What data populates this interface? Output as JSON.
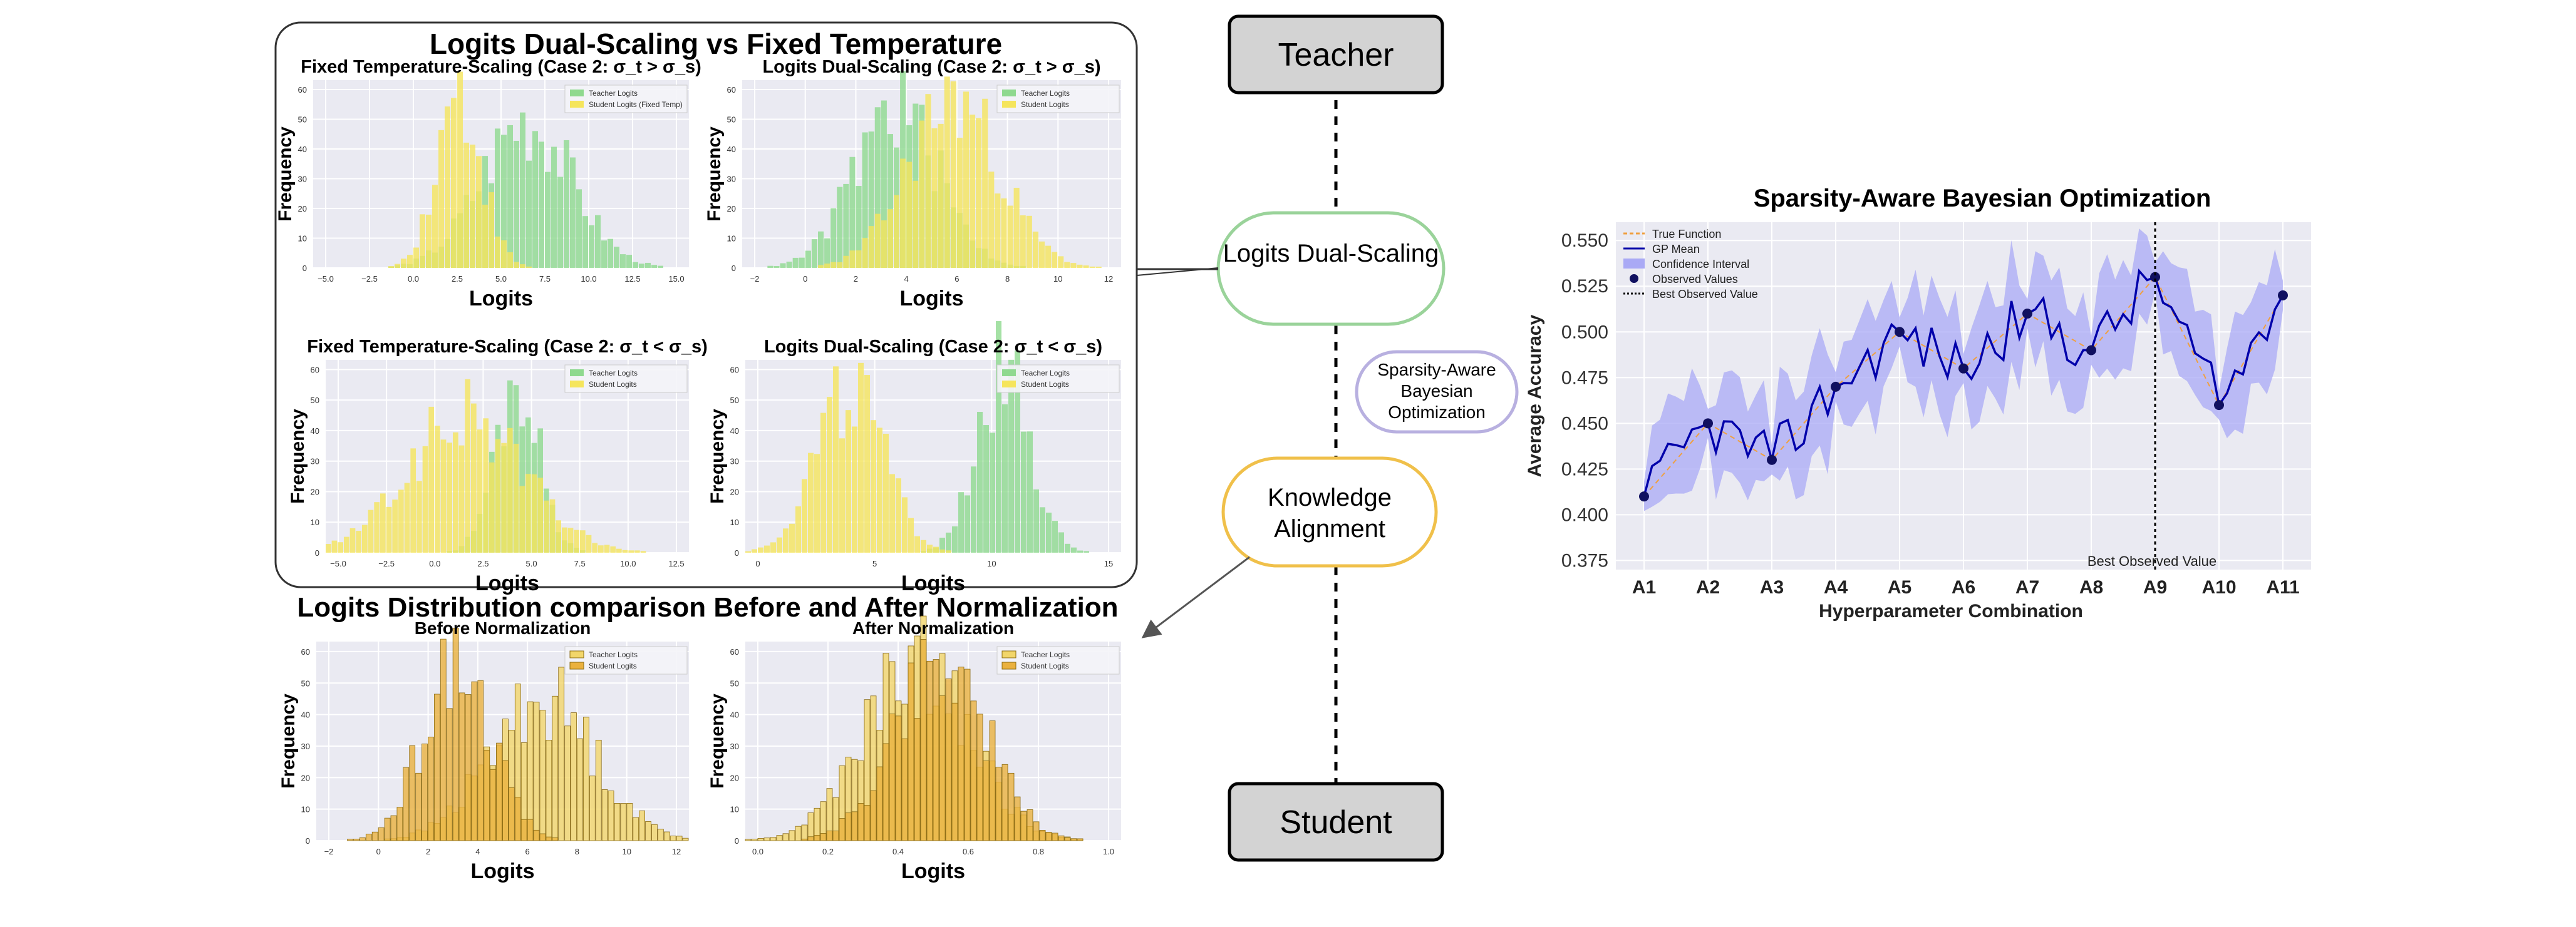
{
  "diagram": {
    "panel_title": "Logits Dual-Scaling vs Fixed Temperature",
    "lower_title": "Logits Distribution comparison Before and After Normalization",
    "nodes": {
      "teacher": "Teacher",
      "dual_scaling": "Logits Dual-Scaling",
      "knowledge_alignment": "Knowledge Alignment",
      "bayes": "Sparsity-Aware Bayesian Optimization",
      "student": "Student"
    },
    "colors": {
      "teacher_green": "#8fd98f",
      "student_yellow": "#f5e55c",
      "orange_teacher": "#f2d66a",
      "orange_student": "#eab13e",
      "plot_bg": "#eaeaf2",
      "green_node_border": "#9ad39a",
      "orange_node_border": "#f0c04a",
      "purple_node_border": "#b8b0e0"
    }
  },
  "histograms": [
    {
      "id": "fixed-gt",
      "title": "Fixed Temperature-Scaling (Case 2: σ_t > σ_s)",
      "xlabel": "Logits",
      "ylabel": "Frequency",
      "xticks": [
        "−5.0",
        "−2.5",
        "0.0",
        "2.5",
        "5.0",
        "7.5",
        "10.0",
        "12.5",
        "15.0"
      ],
      "yticks": [
        "0",
        "10",
        "20",
        "30",
        "40",
        "50",
        "60"
      ],
      "legend": [
        "Teacher Logits",
        "Student Logits (Fixed Temp)"
      ],
      "style": "gy"
    },
    {
      "id": "dual-gt",
      "title": "Logits Dual-Scaling (Case 2: σ_t > σ_s)",
      "xlabel": "Logits",
      "ylabel": "Frequency",
      "xticks": [
        "−2",
        "0",
        "2",
        "4",
        "6",
        "8",
        "10",
        "12"
      ],
      "yticks": [
        "0",
        "10",
        "20",
        "30",
        "40",
        "50",
        "60"
      ],
      "legend": [
        "Teacher Logits",
        "Student Logits"
      ],
      "style": "gy"
    },
    {
      "id": "fixed-lt",
      "title": "Fixed Temperature-Scaling (Case 2: σ_t < σ_s)",
      "xlabel": "Logits",
      "ylabel": "Frequency",
      "xticks": [
        "−5.0",
        "−2.5",
        "0.0",
        "2.5",
        "5.0",
        "7.5",
        "10.0",
        "12.5"
      ],
      "yticks": [
        "0",
        "10",
        "20",
        "30",
        "40",
        "50",
        "60"
      ],
      "legend": [
        "Teacher Logits",
        "Student Logits"
      ],
      "style": "gy"
    },
    {
      "id": "dual-lt",
      "title": "Logits Dual-Scaling (Case 2: σ_t < σ_s)",
      "xlabel": "Logits",
      "ylabel": "Frequency",
      "xticks": [
        "0",
        "5",
        "10",
        "15"
      ],
      "yticks": [
        "0",
        "10",
        "20",
        "30",
        "40",
        "50",
        "60"
      ],
      "legend": [
        "Teacher Logits",
        "Student Logits"
      ],
      "style": "gy"
    },
    {
      "id": "before-norm",
      "title": "Before Normalization",
      "xlabel": "Logits",
      "ylabel": "Frequency",
      "xticks": [
        "−2",
        "0",
        "2",
        "4",
        "6",
        "8",
        "10",
        "12"
      ],
      "yticks": [
        "0",
        "10",
        "20",
        "30",
        "40",
        "50",
        "60"
      ],
      "legend": [
        "Teacher Logits",
        "Student Logits"
      ],
      "style": "oo"
    },
    {
      "id": "after-norm",
      "title": "After Normalization",
      "xlabel": "Logits",
      "ylabel": "Frequency",
      "xticks": [
        "0.0",
        "0.2",
        "0.4",
        "0.6",
        "0.8",
        "1.0"
      ],
      "yticks": [
        "0",
        "10",
        "20",
        "30",
        "40",
        "50",
        "60"
      ],
      "legend": [
        "Teacher Logits",
        "Student Logits"
      ],
      "style": "oo"
    }
  ],
  "chart_data": {
    "type": "line",
    "title": "Sparsity-Aware Bayesian Optimization",
    "xlabel": "Hyperparameter Combination",
    "ylabel": "Average Accuracy",
    "categories": [
      "A1",
      "A2",
      "A3",
      "A4",
      "A5",
      "A6",
      "A7",
      "A8",
      "A9",
      "A10",
      "A11"
    ],
    "ylim": [
      0.37,
      0.56
    ],
    "yticks": [
      "0.375",
      "0.400",
      "0.425",
      "0.450",
      "0.475",
      "0.500",
      "0.525",
      "0.550"
    ],
    "legend": [
      "True Function",
      "GP Mean",
      "Confidence Interval",
      "Observed Values",
      "Best Observed Value"
    ],
    "best_label": "Best Observed Value",
    "observed": [
      {
        "x": "A1",
        "y": 0.41
      },
      {
        "x": "A2",
        "y": 0.45
      },
      {
        "x": "A3",
        "y": 0.43
      },
      {
        "x": "A4",
        "y": 0.47
      },
      {
        "x": "A5",
        "y": 0.5
      },
      {
        "x": "A6",
        "y": 0.48
      },
      {
        "x": "A7",
        "y": 0.51
      },
      {
        "x": "A8",
        "y": 0.49
      },
      {
        "x": "A9",
        "y": 0.53
      },
      {
        "x": "A10",
        "y": 0.46
      },
      {
        "x": "A11",
        "y": 0.52
      }
    ],
    "best_x": "A9",
    "grid": true,
    "legend_position": "top-left",
    "colors": {
      "gp_mean": "#0000aa",
      "ci": "#a9a9f5",
      "true_fn": "#f0a040",
      "observed": "#101060",
      "best": "#000000"
    }
  }
}
